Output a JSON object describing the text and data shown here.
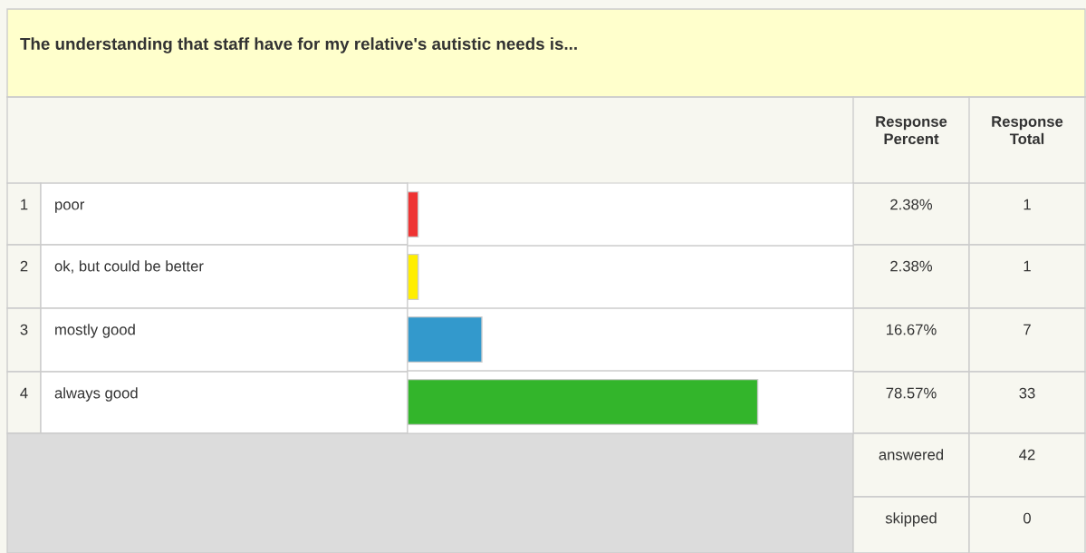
{
  "chart_data": {
    "type": "bar",
    "orientation": "horizontal",
    "title": "The understanding that staff have for my relative's autistic needs is...",
    "categories": [
      "poor",
      "ok, but could be better",
      "mostly good",
      "always good"
    ],
    "values": [
      2.38,
      2.38,
      16.67,
      78.57
    ],
    "colors": [
      "#ee3333",
      "#ffee00",
      "#3399cc",
      "#33b52b"
    ],
    "value_labels": [
      "2.38%",
      "2.38%",
      "16.67%",
      "78.57%"
    ],
    "xlim": [
      0,
      100
    ],
    "annotations": [
      "1",
      "2",
      "3",
      "4",
      "Response\nPercent",
      "Response\nTotal",
      "1",
      "1",
      "7",
      "33",
      "answered",
      "42",
      "skipped",
      "0"
    ]
  }
}
